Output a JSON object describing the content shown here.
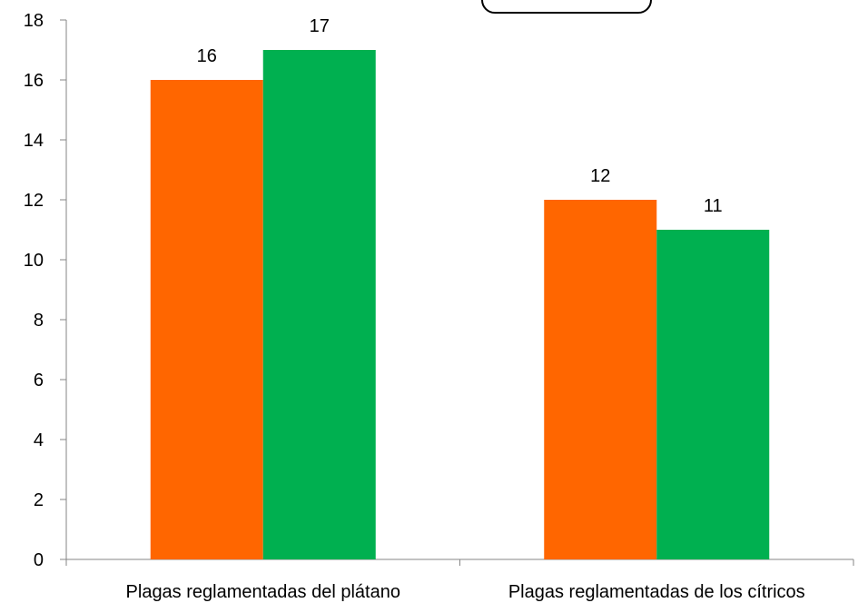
{
  "chart_data": {
    "type": "bar",
    "categories": [
      "Plagas reglamentadas del plátano",
      "Plagas reglamentadas de los cítricos"
    ],
    "series": [
      {
        "values": [
          16,
          12
        ],
        "color": "#FF6600"
      },
      {
        "values": [
          17,
          11
        ],
        "color": "#00B050"
      }
    ],
    "data_labels": true,
    "ylim": [
      0,
      18
    ],
    "y_ticks": [
      0,
      2,
      4,
      6,
      8,
      10,
      12,
      14,
      16,
      18
    ],
    "grid": false,
    "title": "",
    "xlabel": "",
    "ylabel": ""
  }
}
